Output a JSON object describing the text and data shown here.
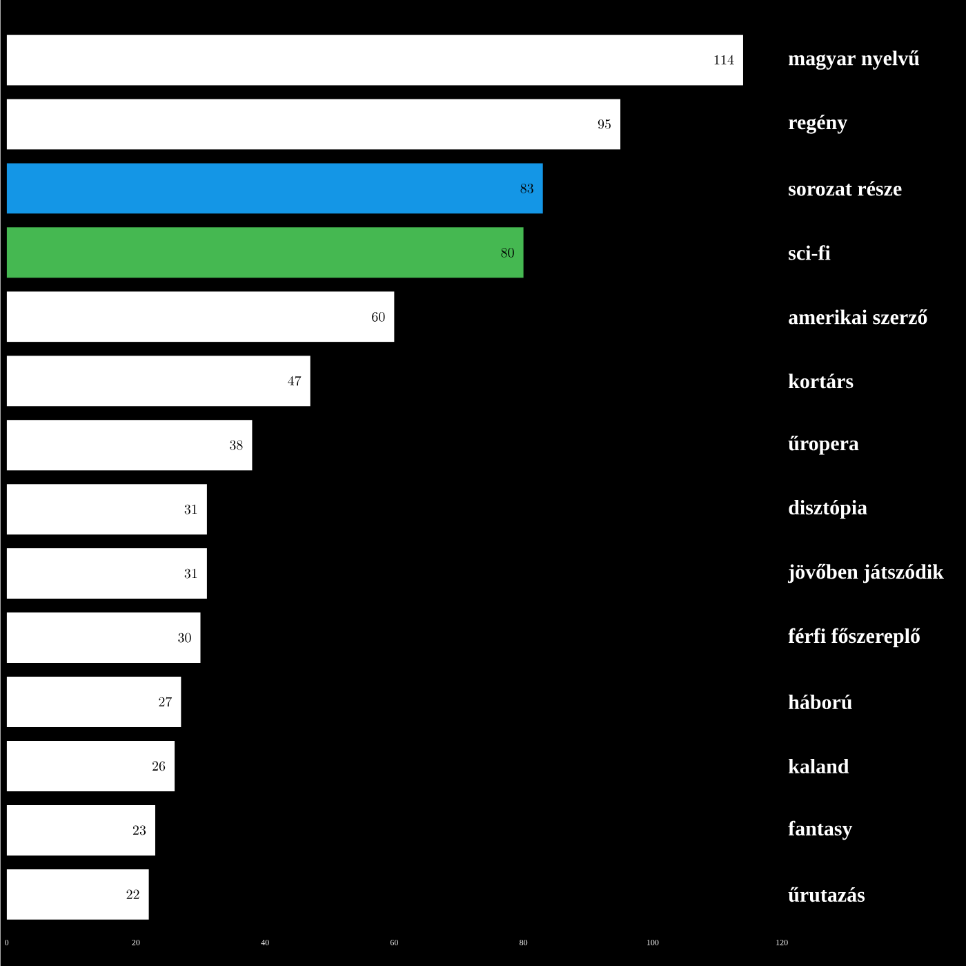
{
  "chart_data": {
    "type": "bar",
    "orientation": "horizontal",
    "categories": [
      "magyar nyelvű",
      "regény",
      "sorozat része",
      "sci-fi",
      "amerikai szerző",
      "kortárs",
      "űropera",
      "disztópia",
      "jövőben játszódik",
      "férfi főszereplő",
      "háború",
      "kaland",
      "fantasy",
      "űrutazás"
    ],
    "values": [
      114,
      95,
      83,
      80,
      60,
      47,
      38,
      31,
      31,
      30,
      27,
      26,
      23,
      22
    ],
    "colors": [
      "#ffffff",
      "#ffffff",
      "#1496e6",
      "#45b851",
      "#ffffff",
      "#ffffff",
      "#ffffff",
      "#ffffff",
      "#ffffff",
      "#ffffff",
      "#ffffff",
      "#ffffff",
      "#ffffff",
      "#ffffff"
    ],
    "xlim": [
      0,
      120
    ],
    "xticks": [
      0,
      20,
      40,
      60,
      80,
      100,
      120
    ],
    "data_labels": true,
    "grid": false
  }
}
